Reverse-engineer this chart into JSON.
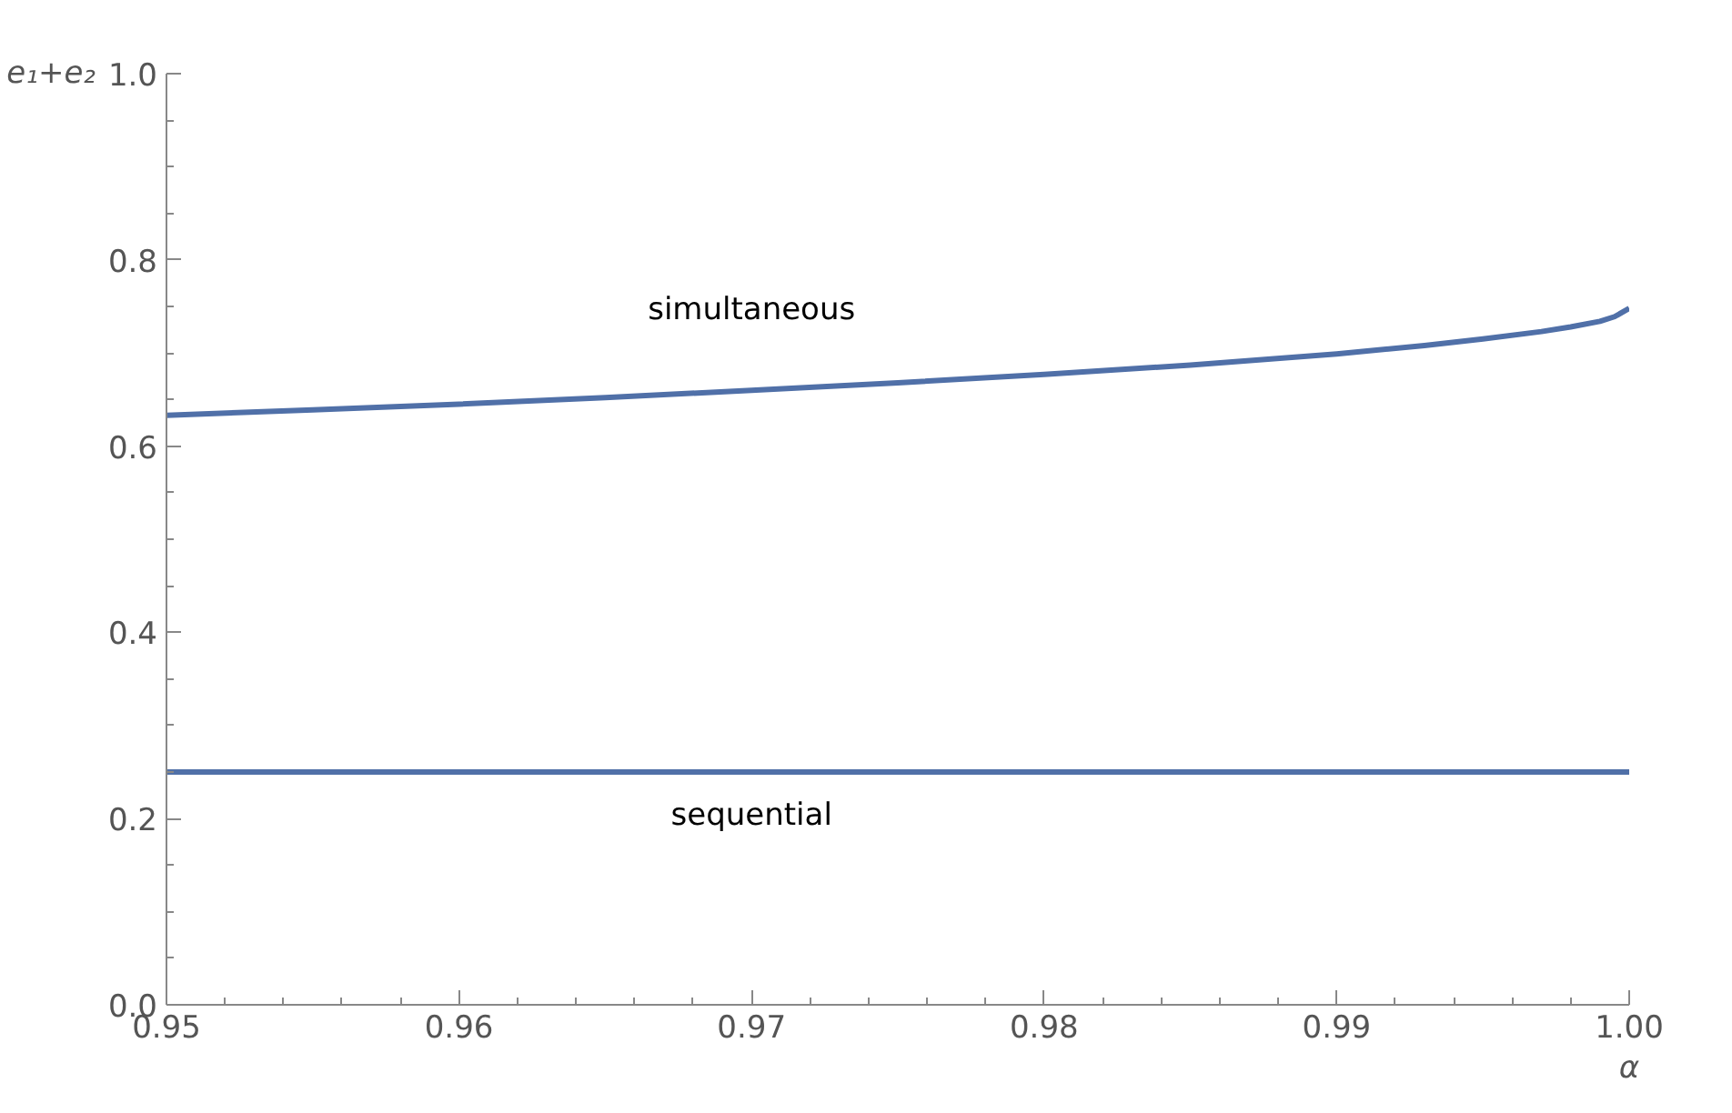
{
  "chart_data": {
    "type": "line",
    "xlabel": "α",
    "ylabel": "e₁+e₂",
    "series": [
      {
        "name": "simultaneous",
        "color": "#5070a8",
        "x": [
          0.95,
          0.955,
          0.96,
          0.965,
          0.97,
          0.975,
          0.98,
          0.985,
          0.99,
          0.993,
          0.995,
          0.997,
          0.998,
          0.999,
          0.9995,
          1.0
        ],
        "values": [
          0.633,
          0.639,
          0.645,
          0.652,
          0.66,
          0.668,
          0.677,
          0.687,
          0.699,
          0.708,
          0.715,
          0.723,
          0.728,
          0.734,
          0.739,
          0.748
        ]
      },
      {
        "name": "sequential",
        "color": "#5070a8",
        "x": [
          0.95,
          1.0
        ],
        "values": [
          0.25,
          0.25
        ]
      }
    ],
    "xlim": [
      0.95,
      1.0
    ],
    "ylim": [
      0,
      1.0
    ],
    "xticks": [
      {
        "value": 0.95,
        "label": "0.95"
      },
      {
        "value": 0.96,
        "label": "0.96"
      },
      {
        "value": 0.97,
        "label": "0.97"
      },
      {
        "value": 0.98,
        "label": "0.98"
      },
      {
        "value": 0.99,
        "label": "0.99"
      },
      {
        "value": 1.0,
        "label": "1.00"
      }
    ],
    "yticks": [
      {
        "value": 0,
        "label": "0.0"
      },
      0.2,
      0.4,
      0.6,
      0.8,
      {
        "value": 1.0,
        "label": "1.0"
      }
    ],
    "grid": false,
    "line_style": "solid",
    "marker": "none"
  }
}
